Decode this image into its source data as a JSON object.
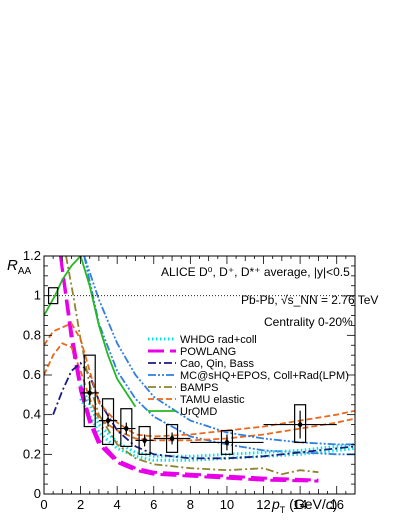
{
  "chart_data": {
    "type": "line",
    "title": "ALICE D⁰, D⁺, D*⁺ average, |y|<0.5",
    "annotations": {
      "system": "Pb-Pb, √s_NN = 2.76 TeV",
      "centrality": "Centrality 0-20%"
    },
    "xlabel": {
      "main": "p",
      "sub": "T",
      "unit_pre": " (GeV/",
      "unit_c": "c",
      "unit_post": ")"
    },
    "ylabel": {
      "main": "R",
      "sub": "AA"
    },
    "xlim": [
      0,
      17
    ],
    "ylim": [
      0,
      1.2
    ],
    "xticks": [
      0,
      2,
      4,
      6,
      8,
      10,
      12,
      14,
      16
    ],
    "yticks": [
      0,
      0.2,
      0.4,
      0.6,
      0.8,
      1.0,
      1.2
    ],
    "ytick_labels": [
      "0",
      "0.2",
      "0.4",
      "0.6",
      "0.8",
      "1",
      "1.2"
    ],
    "reference_line": 1.0,
    "normalization_box": {
      "x": 0.5,
      "ylow": 0.96,
      "yhigh": 1.04,
      "halfwidth": 0.25
    },
    "data": {
      "name": "ALICE D average",
      "points": [
        {
          "x": 2.5,
          "y": 0.51,
          "xlow": 2.0,
          "xhigh": 3.0,
          "stat": 0.06,
          "syslow": 0.17,
          "syshigh": 0.19
        },
        {
          "x": 3.5,
          "y": 0.37,
          "xlow": 3.0,
          "xhigh": 4.0,
          "stat": 0.03,
          "syslow": 0.12,
          "syshigh": 0.11
        },
        {
          "x": 4.5,
          "y": 0.33,
          "xlow": 4.0,
          "xhigh": 5.0,
          "stat": 0.03,
          "syslow": 0.09,
          "syshigh": 0.1
        },
        {
          "x": 5.5,
          "y": 0.27,
          "xlow": 5.0,
          "xhigh": 6.0,
          "stat": 0.03,
          "syslow": 0.07,
          "syshigh": 0.07
        },
        {
          "x": 7.0,
          "y": 0.28,
          "xlow": 6.0,
          "xhigh": 8.0,
          "stat": 0.03,
          "syslow": 0.07,
          "syshigh": 0.07
        },
        {
          "x": 10.0,
          "y": 0.26,
          "xlow": 8.0,
          "xhigh": 12.0,
          "stat": 0.04,
          "syslow": 0.06,
          "syshigh": 0.06
        },
        {
          "x": 14.0,
          "y": 0.35,
          "xlow": 12.0,
          "xhigh": 16.0,
          "stat": 0.07,
          "syslow": 0.09,
          "syshigh": 0.1
        }
      ]
    },
    "series": [
      {
        "name": "WHDG rad+coll",
        "color": "#00e5e5",
        "style": "dotted",
        "band": true,
        "x": [
          2,
          3,
          4,
          5,
          6,
          8,
          10,
          12,
          14,
          16,
          17
        ],
        "y": [
          0.55,
          0.35,
          0.26,
          0.21,
          0.19,
          0.19,
          0.2,
          0.21,
          0.22,
          0.24,
          0.25
        ],
        "y2": [
          0.48,
          0.31,
          0.23,
          0.19,
          0.17,
          0.17,
          0.18,
          0.19,
          0.2,
          0.22,
          0.23
        ]
      },
      {
        "name": "POWLANG",
        "color": "#e800e8",
        "style": "longdash",
        "band": true,
        "x": [
          0.9,
          1.5,
          2,
          2.5,
          3,
          4,
          5,
          6,
          8,
          10,
          12,
          15
        ],
        "y": [
          1.2,
          0.82,
          0.55,
          0.38,
          0.27,
          0.17,
          0.13,
          0.11,
          0.1,
          0.09,
          0.08,
          0.07
        ],
        "y2": [
          1.2,
          0.78,
          0.52,
          0.36,
          0.25,
          0.16,
          0.12,
          0.1,
          0.09,
          0.08,
          0.07,
          0.065
        ]
      },
      {
        "name": "Cao, Qin, Bass",
        "color": "#1a1a80",
        "style": "dashdot",
        "band": false,
        "x": [
          0.5,
          1,
          1.5,
          2,
          2.5,
          3,
          4,
          5,
          6,
          8,
          10,
          12,
          14,
          17
        ],
        "y": [
          0.4,
          0.52,
          0.62,
          0.66,
          0.6,
          0.47,
          0.32,
          0.24,
          0.2,
          0.18,
          0.18,
          0.19,
          0.21,
          0.24
        ]
      },
      {
        "name": "MC@sHQ+EPOS, Coll+Rad(LPM)",
        "color": "#2f7fe0",
        "style": "dashdotdot",
        "band": true,
        "x": [
          2.2,
          3,
          4,
          5,
          6,
          8,
          10,
          12,
          14,
          16,
          17
        ],
        "y": [
          1.2,
          0.98,
          0.76,
          0.6,
          0.49,
          0.37,
          0.31,
          0.28,
          0.26,
          0.25,
          0.25
        ],
        "y2": [
          1.2,
          0.86,
          0.62,
          0.48,
          0.39,
          0.29,
          0.25,
          0.22,
          0.21,
          0.2,
          0.2
        ]
      },
      {
        "name": "BAMPS",
        "color": "#8e8430",
        "style": "dashdot",
        "band": false,
        "x": [
          1.2,
          1.6,
          2,
          2.5,
          3,
          4,
          5,
          6,
          7,
          8,
          10,
          12,
          13,
          14,
          15
        ],
        "y": [
          1.2,
          1.0,
          0.78,
          0.55,
          0.4,
          0.25,
          0.18,
          0.15,
          0.14,
          0.13,
          0.12,
          0.13,
          0.1,
          0.12,
          0.11
        ]
      },
      {
        "name": "TAMU elastic",
        "color": "#e8681e",
        "style": "dashed",
        "band": true,
        "x": [
          0,
          0.5,
          1,
          1.5,
          2,
          2.5,
          3,
          4,
          5,
          6,
          8,
          10,
          12,
          14,
          16,
          17
        ],
        "y": [
          0.75,
          0.82,
          0.84,
          0.86,
          0.78,
          0.62,
          0.46,
          0.36,
          0.3,
          0.29,
          0.3,
          0.32,
          0.34,
          0.37,
          0.4,
          0.42
        ],
        "y2": [
          0.6,
          0.7,
          0.76,
          0.74,
          0.62,
          0.48,
          0.38,
          0.32,
          0.28,
          0.27,
          0.27,
          0.28,
          0.3,
          0.33,
          0.36,
          0.38
        ]
      },
      {
        "name": "UrQMD",
        "color": "#22b822",
        "style": "solid",
        "band": false,
        "x": [
          0,
          0.3,
          0.6,
          1,
          1.5,
          2,
          2.5,
          3,
          3.5,
          4,
          5
        ],
        "y": [
          0.9,
          0.95,
          1.0,
          1.08,
          1.15,
          1.2,
          1.05,
          0.85,
          0.7,
          0.58,
          0.44
        ]
      }
    ],
    "legend_position": "center-right"
  }
}
